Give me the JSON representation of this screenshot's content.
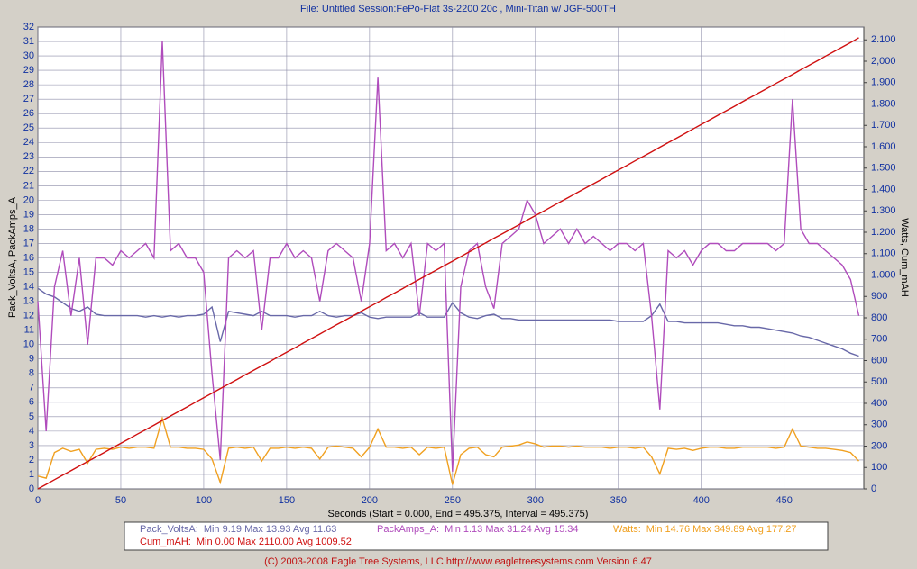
{
  "chart_data": {
    "type": "line",
    "title": "File: Untitled   Session:FePo-Flat 3s-2200 20c , Mini-Titan w/ JGF-500TH",
    "x_label": "Seconds (Start = 0.000,  End = 495.375,  Interval =  495.375)",
    "y_label": "Pack_VoltsA, PackAmps_A",
    "y2_label": "Watts, Cum_mAH",
    "footer": "(C) 2003-2008 Eagle Tree Systems, LLC      http://www.eagletreesystems.com      Version 6.47",
    "grid": true,
    "xlim": [
      0,
      498
    ],
    "xticks": [
      0,
      50,
      100,
      150,
      200,
      250,
      300,
      350,
      400,
      450
    ],
    "ylim": [
      0,
      32
    ],
    "yticks": [
      0,
      1,
      2,
      3,
      4,
      5,
      6,
      7,
      8,
      9,
      10,
      11,
      12,
      13,
      14,
      15,
      16,
      17,
      18,
      19,
      20,
      21,
      22,
      23,
      24,
      25,
      26,
      27,
      28,
      29,
      30,
      31,
      32
    ],
    "y2lim": [
      0,
      2160
    ],
    "y2ticks": [
      0,
      100,
      200,
      300,
      400,
      500,
      600,
      700,
      800,
      900,
      {
        "value": 1000,
        "label": "1.000"
      },
      {
        "value": 1100,
        "label": "1.100"
      },
      {
        "value": 1200,
        "label": "1.200"
      },
      {
        "value": 1300,
        "label": "1.300"
      },
      {
        "value": 1400,
        "label": "1.400"
      },
      {
        "value": 1500,
        "label": "1.500"
      },
      {
        "value": 1600,
        "label": "1.600"
      },
      {
        "value": 1700,
        "label": "1.700"
      },
      {
        "value": 1800,
        "label": "1.800"
      },
      {
        "value": 1900,
        "label": "1.900"
      },
      {
        "value": 2000,
        "label": "2,000"
      },
      {
        "value": 2100,
        "label": "2.100"
      }
    ],
    "x": [
      0,
      5,
      10,
      15,
      20,
      25,
      30,
      35,
      40,
      45,
      50,
      55,
      60,
      65,
      70,
      75,
      80,
      85,
      90,
      95,
      100,
      105,
      110,
      115,
      120,
      125,
      130,
      135,
      140,
      145,
      150,
      155,
      160,
      165,
      170,
      175,
      180,
      185,
      190,
      195,
      200,
      205,
      210,
      215,
      220,
      225,
      230,
      235,
      240,
      245,
      250,
      255,
      260,
      265,
      270,
      275,
      280,
      285,
      290,
      295,
      300,
      305,
      310,
      315,
      320,
      325,
      330,
      335,
      340,
      345,
      350,
      355,
      360,
      365,
      370,
      375,
      380,
      385,
      390,
      395,
      400,
      405,
      410,
      415,
      420,
      425,
      430,
      435,
      440,
      445,
      450,
      455,
      460,
      465,
      470,
      475,
      480,
      485,
      490,
      495
    ],
    "series": [
      {
        "name": "Pack_VoltsA:",
        "stats": "Min 9.19   Max 13.93   Avg 11.63",
        "color": "#6868a8",
        "axis": "y",
        "values": [
          13.9,
          13.5,
          13.3,
          12.9,
          12.5,
          12.3,
          12.6,
          12.1,
          12.0,
          12.0,
          12.0,
          12.0,
          12.0,
          11.9,
          12.0,
          11.9,
          12.0,
          11.9,
          12.0,
          12.0,
          12.1,
          12.6,
          10.2,
          12.3,
          12.2,
          12.1,
          12.0,
          12.3,
          12.0,
          12.0,
          12.0,
          11.9,
          12.0,
          12.0,
          12.3,
          12.0,
          11.9,
          12.0,
          12.0,
          12.2,
          11.9,
          11.8,
          11.9,
          11.9,
          11.9,
          11.9,
          12.2,
          11.9,
          11.9,
          11.9,
          12.9,
          12.2,
          11.9,
          11.8,
          12.0,
          12.1,
          11.8,
          11.8,
          11.7,
          11.7,
          11.7,
          11.7,
          11.7,
          11.7,
          11.7,
          11.7,
          11.7,
          11.7,
          11.7,
          11.7,
          11.6,
          11.6,
          11.6,
          11.6,
          12.0,
          12.8,
          11.6,
          11.6,
          11.5,
          11.5,
          11.5,
          11.5,
          11.5,
          11.4,
          11.3,
          11.3,
          11.2,
          11.2,
          11.1,
          11.0,
          10.9,
          10.8,
          10.6,
          10.5,
          10.3,
          10.1,
          9.9,
          9.7,
          9.4,
          9.2
        ]
      },
      {
        "name": "PackAmps_A:",
        "stats": "Min 1.13   Max 31.24   Avg 15.34",
        "color": "#b04cbc",
        "axis": "y",
        "values": [
          13,
          4,
          14,
          16.5,
          12,
          16,
          10,
          16,
          16,
          15.5,
          16.5,
          16,
          16.5,
          17,
          16,
          31,
          16.5,
          17,
          16,
          16,
          15,
          8,
          2,
          16,
          16.5,
          16,
          16.5,
          11,
          16,
          16,
          17,
          16,
          16.5,
          16,
          13,
          16.5,
          17,
          16.5,
          16,
          13,
          17,
          28.5,
          16.5,
          17,
          16,
          17,
          12,
          17,
          16.5,
          17,
          1.2,
          14,
          16.5,
          17,
          14,
          12.5,
          17,
          17.5,
          18,
          20,
          19,
          17,
          17.5,
          18,
          17,
          18,
          17,
          17.5,
          17,
          16.5,
          17,
          17,
          16.5,
          17,
          12,
          5.5,
          16.5,
          16,
          16.5,
          15.5,
          16.5,
          17,
          17,
          16.5,
          16.5,
          17,
          17,
          17,
          17,
          16.5,
          17,
          27,
          18,
          17,
          17,
          16.5,
          16,
          15.5,
          14.5,
          12
        ]
      },
      {
        "name": "Watts:",
        "stats": "Min 14.76   Max 349.89   Avg 177.27",
        "color": "#f0a020",
        "axis": "y2",
        "values": [
          60,
          50,
          170,
          190,
          175,
          185,
          120,
          185,
          190,
          185,
          195,
          190,
          195,
          195,
          190,
          330,
          195,
          195,
          190,
          190,
          185,
          140,
          30,
          190,
          195,
          190,
          195,
          130,
          190,
          190,
          195,
          190,
          195,
          190,
          140,
          195,
          200,
          195,
          190,
          150,
          195,
          280,
          195,
          195,
          190,
          195,
          160,
          195,
          190,
          195,
          20,
          160,
          190,
          195,
          160,
          150,
          195,
          200,
          205,
          220,
          210,
          195,
          200,
          200,
          195,
          200,
          195,
          195,
          195,
          190,
          195,
          195,
          190,
          195,
          150,
          70,
          190,
          185,
          190,
          180,
          190,
          195,
          195,
          190,
          190,
          195,
          195,
          195,
          195,
          190,
          195,
          280,
          200,
          195,
          190,
          190,
          185,
          180,
          170,
          130
        ]
      },
      {
        "name": "Cum_mAH:",
        "stats": "Min 0.00   Max 2110.00   Avg 1009.52",
        "color": "#d01010",
        "axis": "y2",
        "values": [
          0,
          21,
          43,
          64,
          85,
          107,
          128,
          149,
          170,
          192,
          213,
          234,
          256,
          277,
          298,
          320,
          341,
          362,
          383,
          405,
          426,
          447,
          469,
          490,
          511,
          533,
          554,
          575,
          596,
          618,
          639,
          660,
          682,
          703,
          724,
          746,
          767,
          788,
          809,
          831,
          852,
          873,
          895,
          916,
          937,
          959,
          980,
          1001,
          1022,
          1044,
          1065,
          1086,
          1108,
          1129,
          1150,
          1172,
          1193,
          1214,
          1235,
          1257,
          1278,
          1299,
          1321,
          1342,
          1363,
          1385,
          1406,
          1427,
          1448,
          1470,
          1491,
          1512,
          1534,
          1555,
          1576,
          1598,
          1619,
          1640,
          1661,
          1683,
          1704,
          1725,
          1747,
          1768,
          1789,
          1811,
          1832,
          1853,
          1874,
          1896,
          1917,
          1938,
          1960,
          1981,
          2002,
          2024,
          2045,
          2066,
          2087,
          2110
        ]
      }
    ]
  }
}
